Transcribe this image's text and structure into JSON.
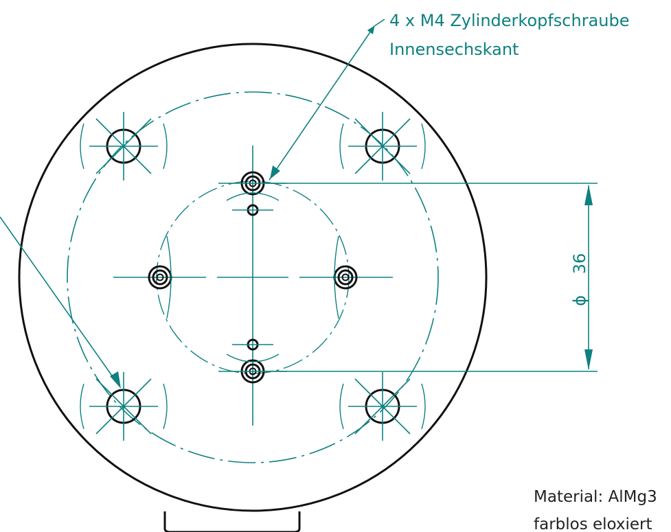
{
  "drawing": {
    "callout_screw_line1": "4 x M4 Zylinderkopfschraube",
    "callout_screw_line2": "Innensechskant",
    "dimension_symbol": "ϕ",
    "dimension_value": "36",
    "material_line1": "Material: AlMg3",
    "material_line2": "farblos eloxiert"
  },
  "colors": {
    "outline": "#111111",
    "annotation": "#0e8080",
    "background": "#ffffff"
  }
}
